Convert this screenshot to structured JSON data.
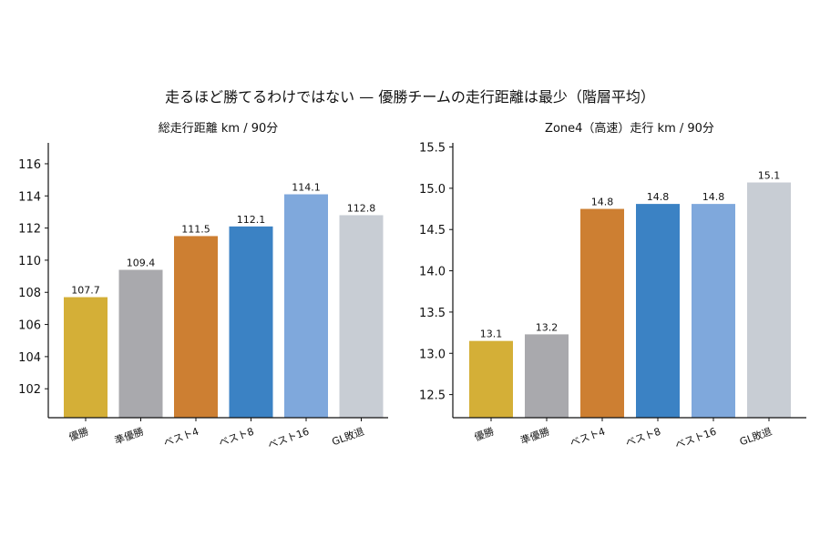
{
  "suptitle": "走るほど勝てるわけではない — 優勝チームの走行距離は最少（階層平均）",
  "chart_data": [
    {
      "type": "bar",
      "title": "総走行距離 km / 90分",
      "categories": [
        "優勝",
        "準優勝",
        "ベスト4",
        "ベスト8",
        "ベスト16",
        "GL敗退"
      ],
      "values": [
        107.7,
        109.4,
        111.5,
        112.1,
        114.1,
        112.8
      ],
      "value_labels": [
        "107.7",
        "109.4",
        "111.5",
        "112.1",
        "114.1",
        "112.8"
      ],
      "colors": [
        "#d4af37",
        "#a9a9ad",
        "#cd7f32",
        "#3b82c4",
        "#7fa8dc",
        "#c8cdd4"
      ],
      "ylim": [
        100.2,
        117.3
      ],
      "yticks": [
        102,
        104,
        106,
        108,
        110,
        112,
        114,
        116
      ],
      "ytick_labels": [
        "102",
        "104",
        "106",
        "108",
        "110",
        "112",
        "114",
        "116"
      ],
      "xlabel": "",
      "ylabel": "",
      "grid": false,
      "legend": "none"
    },
    {
      "type": "bar",
      "title": "Zone4（高速）走行 km / 90分",
      "categories": [
        "優勝",
        "準優勝",
        "ベスト4",
        "ベスト8",
        "ベスト16",
        "GL敗退"
      ],
      "values": [
        13.15,
        13.23,
        14.75,
        14.81,
        14.81,
        15.07
      ],
      "value_labels": [
        "13.1",
        "13.2",
        "14.8",
        "14.8",
        "14.8",
        "15.1"
      ],
      "colors": [
        "#d4af37",
        "#a9a9ad",
        "#cd7f32",
        "#3b82c4",
        "#7fa8dc",
        "#c8cdd4"
      ],
      "ylim": [
        12.22,
        15.55
      ],
      "yticks": [
        12.5,
        13.0,
        13.5,
        14.0,
        14.5,
        15.0,
        15.5
      ],
      "ytick_labels": [
        "12.5",
        "13.0",
        "13.5",
        "14.0",
        "14.5",
        "15.0",
        "15.5"
      ],
      "xlabel": "",
      "ylabel": "",
      "grid": false,
      "legend": "none"
    }
  ]
}
